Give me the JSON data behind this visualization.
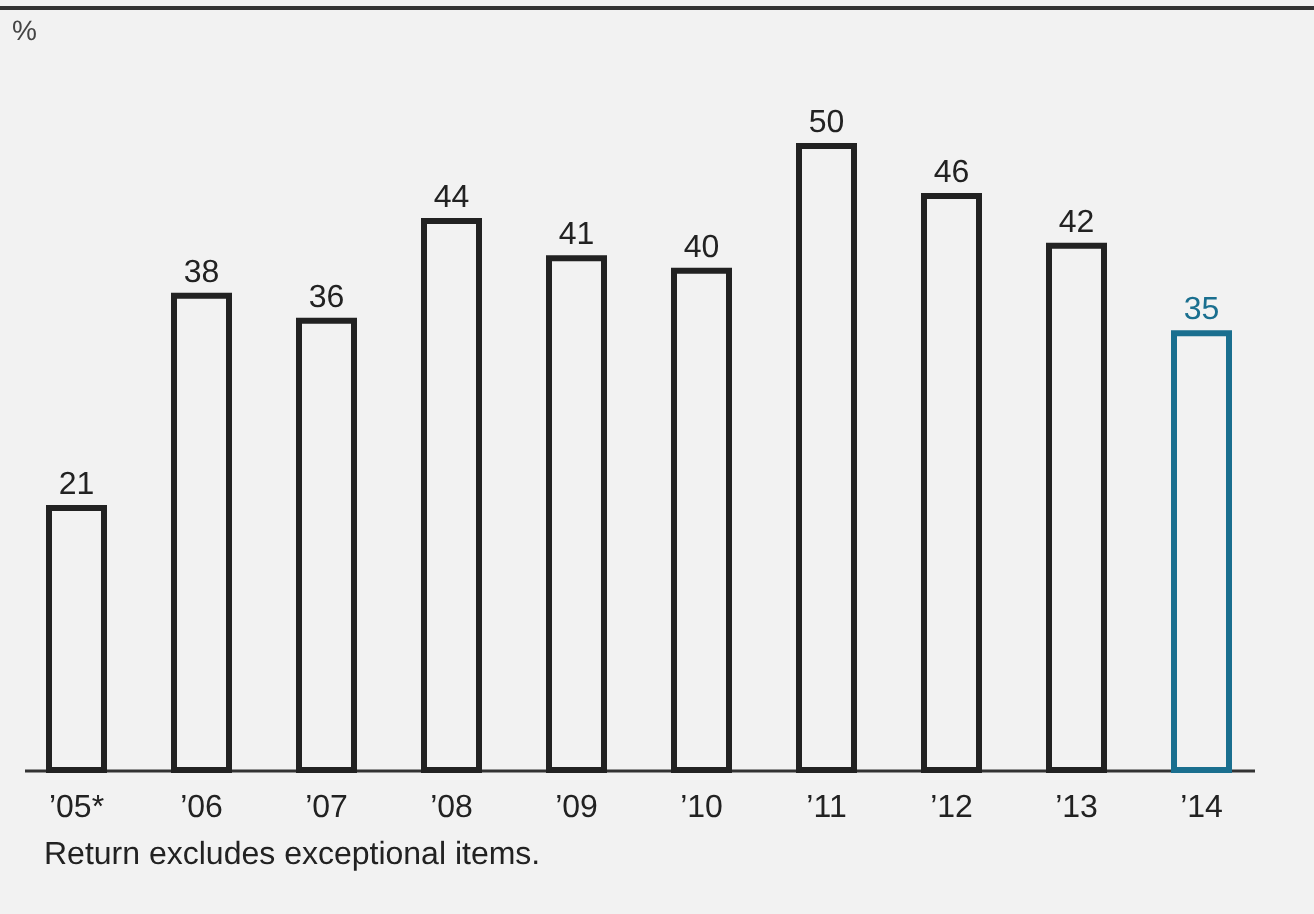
{
  "chart_data": {
    "type": "bar",
    "ylabel": "%",
    "categories": [
      "’05*",
      "’06",
      "’07",
      "’08",
      "’09",
      "’10",
      "’11",
      "’12",
      "’13",
      "’14"
    ],
    "values": [
      21,
      38,
      36,
      44,
      41,
      40,
      50,
      46,
      42,
      35
    ],
    "colors": [
      "#222222",
      "#222222",
      "#222222",
      "#222222",
      "#222222",
      "#222222",
      "#222222",
      "#222222",
      "#222222",
      "#1a6f8f"
    ],
    "data_labels": true,
    "annotations": [
      "Return excludes exceptional items."
    ]
  }
}
